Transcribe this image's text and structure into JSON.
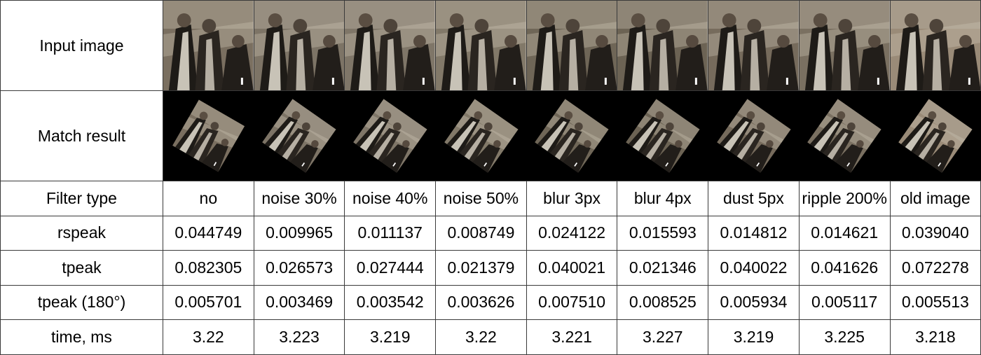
{
  "rows": {
    "input_label": "Input image",
    "match_label": "Match result",
    "filter_label": "Filter type",
    "rspeak_label": "rspeak",
    "tpeak_label": "tpeak",
    "tpeak180_label": "tpeak (180°)",
    "time_label": "time, ms"
  },
  "columns": [
    {
      "filter": "no",
      "rspeak": "0.044749",
      "tpeak": "0.082305",
      "tpeak180": "0.005701",
      "time": "3.22",
      "tone": "#7a6f60",
      "rotation": 30
    },
    {
      "filter": "noise 30%",
      "rspeak": "0.009965",
      "tpeak": "0.026573",
      "tpeak180": "0.003469",
      "time": "3.223",
      "tone": "#7d7466",
      "rotation": 35
    },
    {
      "filter": "noise 40%",
      "rspeak": "0.011137",
      "tpeak": "0.027444",
      "tpeak180": "0.003542",
      "time": "3.219",
      "tone": "#7f7668",
      "rotation": 35
    },
    {
      "filter": "noise 50%",
      "rspeak": "0.008749",
      "tpeak": "0.021379",
      "tpeak180": "0.003626",
      "time": "3.22",
      "tone": "#827969",
      "rotation": 35
    },
    {
      "filter": "blur 3px",
      "rspeak": "0.024122",
      "tpeak": "0.040021",
      "tpeak180": "0.007510",
      "time": "3.221",
      "tone": "#6f6657",
      "rotation": 35
    },
    {
      "filter": "blur 4px",
      "rspeak": "0.015593",
      "tpeak": "0.021346",
      "tpeak180": "0.008525",
      "time": "3.227",
      "tone": "#6c6354",
      "rotation": 35
    },
    {
      "filter": "dust 5px",
      "rspeak": "0.014812",
      "tpeak": "0.040022",
      "tpeak180": "0.005934",
      "time": "3.219",
      "tone": "#766b5c",
      "rotation": 35
    },
    {
      "filter": "ripple 200%",
      "rspeak": "0.014621",
      "tpeak": "0.041626",
      "tpeak180": "0.005117",
      "time": "3.225",
      "tone": "#7a7061",
      "rotation": 35
    },
    {
      "filter": "old image",
      "rspeak": "0.039040",
      "tpeak": "0.072278",
      "tpeak180": "0.005513",
      "time": "3.218",
      "tone": "#9a8b78",
      "rotation": 35
    }
  ]
}
